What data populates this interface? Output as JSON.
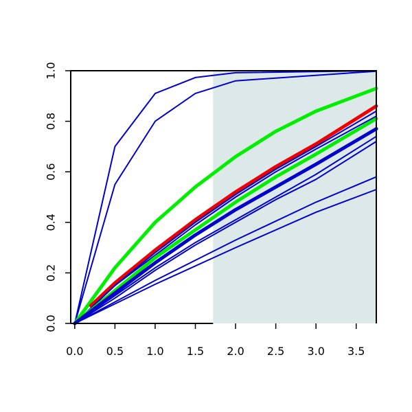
{
  "chart_data": {
    "type": "line",
    "title": "",
    "xlabel": "",
    "ylabel": "",
    "xlim": [
      -0.05,
      3.75
    ],
    "ylim": [
      0,
      1
    ],
    "x_ticks": [
      "0.0",
      "0.5",
      "1.0",
      "1.5",
      "2.0",
      "2.5",
      "3.0",
      "3.5"
    ],
    "y_ticks": [
      "0.0",
      "0.2",
      "0.4",
      "0.6",
      "0.8",
      "1.0"
    ],
    "grid": false,
    "legend": "none",
    "shaded_region": {
      "x_from": 1.72,
      "x_to": 3.75,
      "color": "#dde9e9"
    },
    "series": [
      {
        "color": "#0000cc",
        "weight": "thin",
        "x": [
          0,
          0.5,
          1.0,
          1.5,
          2.0,
          3.75
        ],
        "y": [
          0,
          0.7,
          0.91,
          0.973,
          0.992,
          1.0
        ]
      },
      {
        "color": "#0000cc",
        "weight": "thin",
        "x": [
          0,
          0.5,
          1.0,
          1.5,
          2.0,
          3.75
        ],
        "y": [
          0,
          0.55,
          0.8,
          0.91,
          0.96,
          0.998
        ]
      },
      {
        "color": "#00ee00",
        "weight": "thick",
        "x": [
          0,
          0.5,
          1.0,
          1.5,
          2.0,
          2.5,
          3.0,
          3.75
        ],
        "y": [
          0,
          0.22,
          0.4,
          0.54,
          0.66,
          0.76,
          0.84,
          0.93
        ]
      },
      {
        "color": "#ee0000",
        "weight": "thick",
        "x": [
          0.2,
          0.5,
          1.0,
          1.5,
          2.0,
          2.5,
          3.0,
          3.75
        ],
        "y": [
          0.07,
          0.16,
          0.29,
          0.41,
          0.52,
          0.62,
          0.71,
          0.86
        ]
      },
      {
        "color": "#0000cc",
        "weight": "thin",
        "x": [
          0,
          0.5,
          1.0,
          1.5,
          2.0,
          2.5,
          3.0,
          3.75
        ],
        "y": [
          0,
          0.15,
          0.28,
          0.4,
          0.51,
          0.61,
          0.7,
          0.84
        ]
      },
      {
        "color": "#0000cc",
        "weight": "thin",
        "x": [
          0,
          0.5,
          1.0,
          1.5,
          2.0,
          2.5,
          3.0,
          3.75
        ],
        "y": [
          0,
          0.15,
          0.27,
          0.39,
          0.5,
          0.6,
          0.69,
          0.82
        ]
      },
      {
        "color": "#00ee00",
        "weight": "thick",
        "x": [
          0,
          0.5,
          1.0,
          1.5,
          2.0,
          2.5,
          3.0,
          3.75
        ],
        "y": [
          0,
          0.13,
          0.26,
          0.37,
          0.48,
          0.58,
          0.67,
          0.81
        ]
      },
      {
        "color": "#0000cc",
        "weight": "thick",
        "x": [
          0,
          0.5,
          1.0,
          1.5,
          2.0,
          2.5,
          3.0,
          3.75
        ],
        "y": [
          0,
          0.12,
          0.24,
          0.35,
          0.45,
          0.54,
          0.63,
          0.77
        ]
      },
      {
        "color": "#0000cc",
        "weight": "thin",
        "x": [
          0,
          0.5,
          1.0,
          1.5,
          2.0,
          2.5,
          3.0,
          3.75
        ],
        "y": [
          0,
          0.11,
          0.22,
          0.32,
          0.41,
          0.5,
          0.59,
          0.74
        ]
      },
      {
        "color": "#0000cc",
        "weight": "thin",
        "x": [
          0,
          0.5,
          1.0,
          1.5,
          2.0,
          2.5,
          3.0,
          3.75
        ],
        "y": [
          0,
          0.1,
          0.21,
          0.31,
          0.4,
          0.49,
          0.57,
          0.72
        ]
      },
      {
        "color": "#0000cc",
        "weight": "thin",
        "x": [
          0,
          1.0,
          2.0,
          3.0,
          3.75
        ],
        "y": [
          0,
          0.17,
          0.33,
          0.48,
          0.58
        ]
      },
      {
        "color": "#0000cc",
        "weight": "thin",
        "x": [
          0,
          1.0,
          2.0,
          3.0,
          3.75
        ],
        "y": [
          0,
          0.155,
          0.3,
          0.44,
          0.53
        ]
      }
    ]
  }
}
